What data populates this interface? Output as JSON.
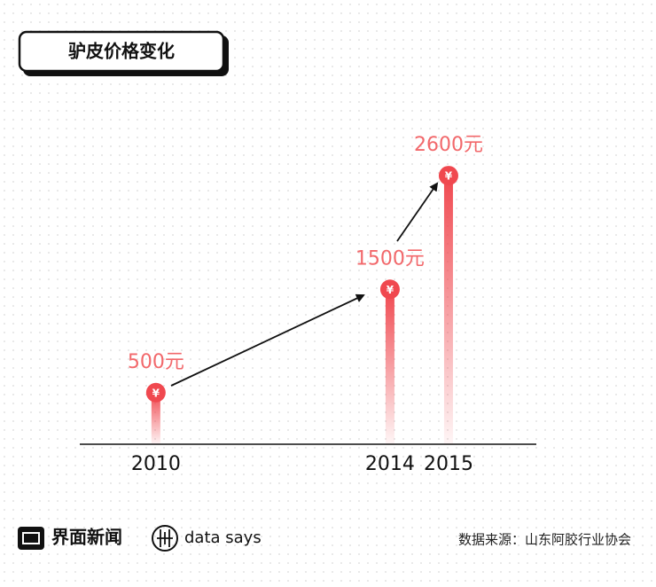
{
  "chart_data": {
    "type": "lollipop",
    "title": "驴皮价格变化",
    "x": [
      2010,
      2014,
      2015
    ],
    "values": [
      500,
      1500,
      2600
    ],
    "value_labels": [
      "500元",
      "1500元",
      "2600元"
    ],
    "marker_symbol": "¥",
    "xlim": [
      2008.7,
      2016.5
    ],
    "xticks": [
      2010,
      2014,
      2015
    ],
    "ylim": [
      0,
      3000
    ],
    "color": "#f0484f",
    "source": "数据来源：山东阿胶行业协会",
    "brand": "界面新闻",
    "brand2": "data says"
  }
}
